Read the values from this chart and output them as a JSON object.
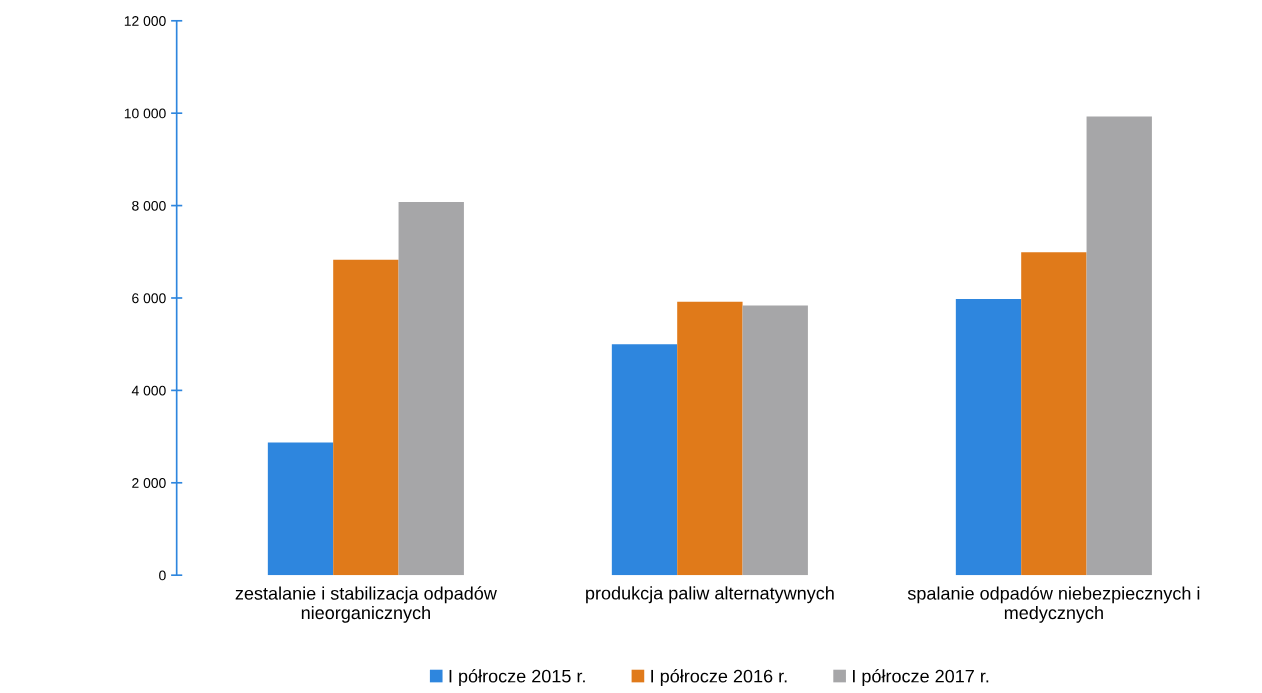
{
  "chart_data": {
    "type": "bar",
    "categories": [
      "zestalanie i stabilizacja odpadów\nnieorganicznych",
      "produkcja paliw alternatywnych",
      "spalanie odpadów niebezpiecznych i\nmedycznych"
    ],
    "series": [
      {
        "name": "I półrocze 2015 r.",
        "color": "#2e86de",
        "values": [
          2870,
          5000,
          5980
        ]
      },
      {
        "name": "I półrocze 2016 r.",
        "color": "#e07a1a",
        "values": [
          6830,
          5920,
          6990
        ]
      },
      {
        "name": "I półrocze 2017 r.",
        "color": "#a6a6a8",
        "values": [
          8080,
          5840,
          9930
        ]
      }
    ],
    "ylim": [
      0,
      12000
    ],
    "yticks": [
      {
        "value": 0,
        "label": "0"
      },
      {
        "value": 2000,
        "label": "2 000"
      },
      {
        "value": 4000,
        "label": "4 000"
      },
      {
        "value": 6000,
        "label": "6 000"
      },
      {
        "value": 8000,
        "label": "8 000"
      },
      {
        "value": 10000,
        "label": "10 000"
      },
      {
        "value": 12000,
        "label": "12 000"
      }
    ],
    "grid": false,
    "legend": "bottom"
  }
}
